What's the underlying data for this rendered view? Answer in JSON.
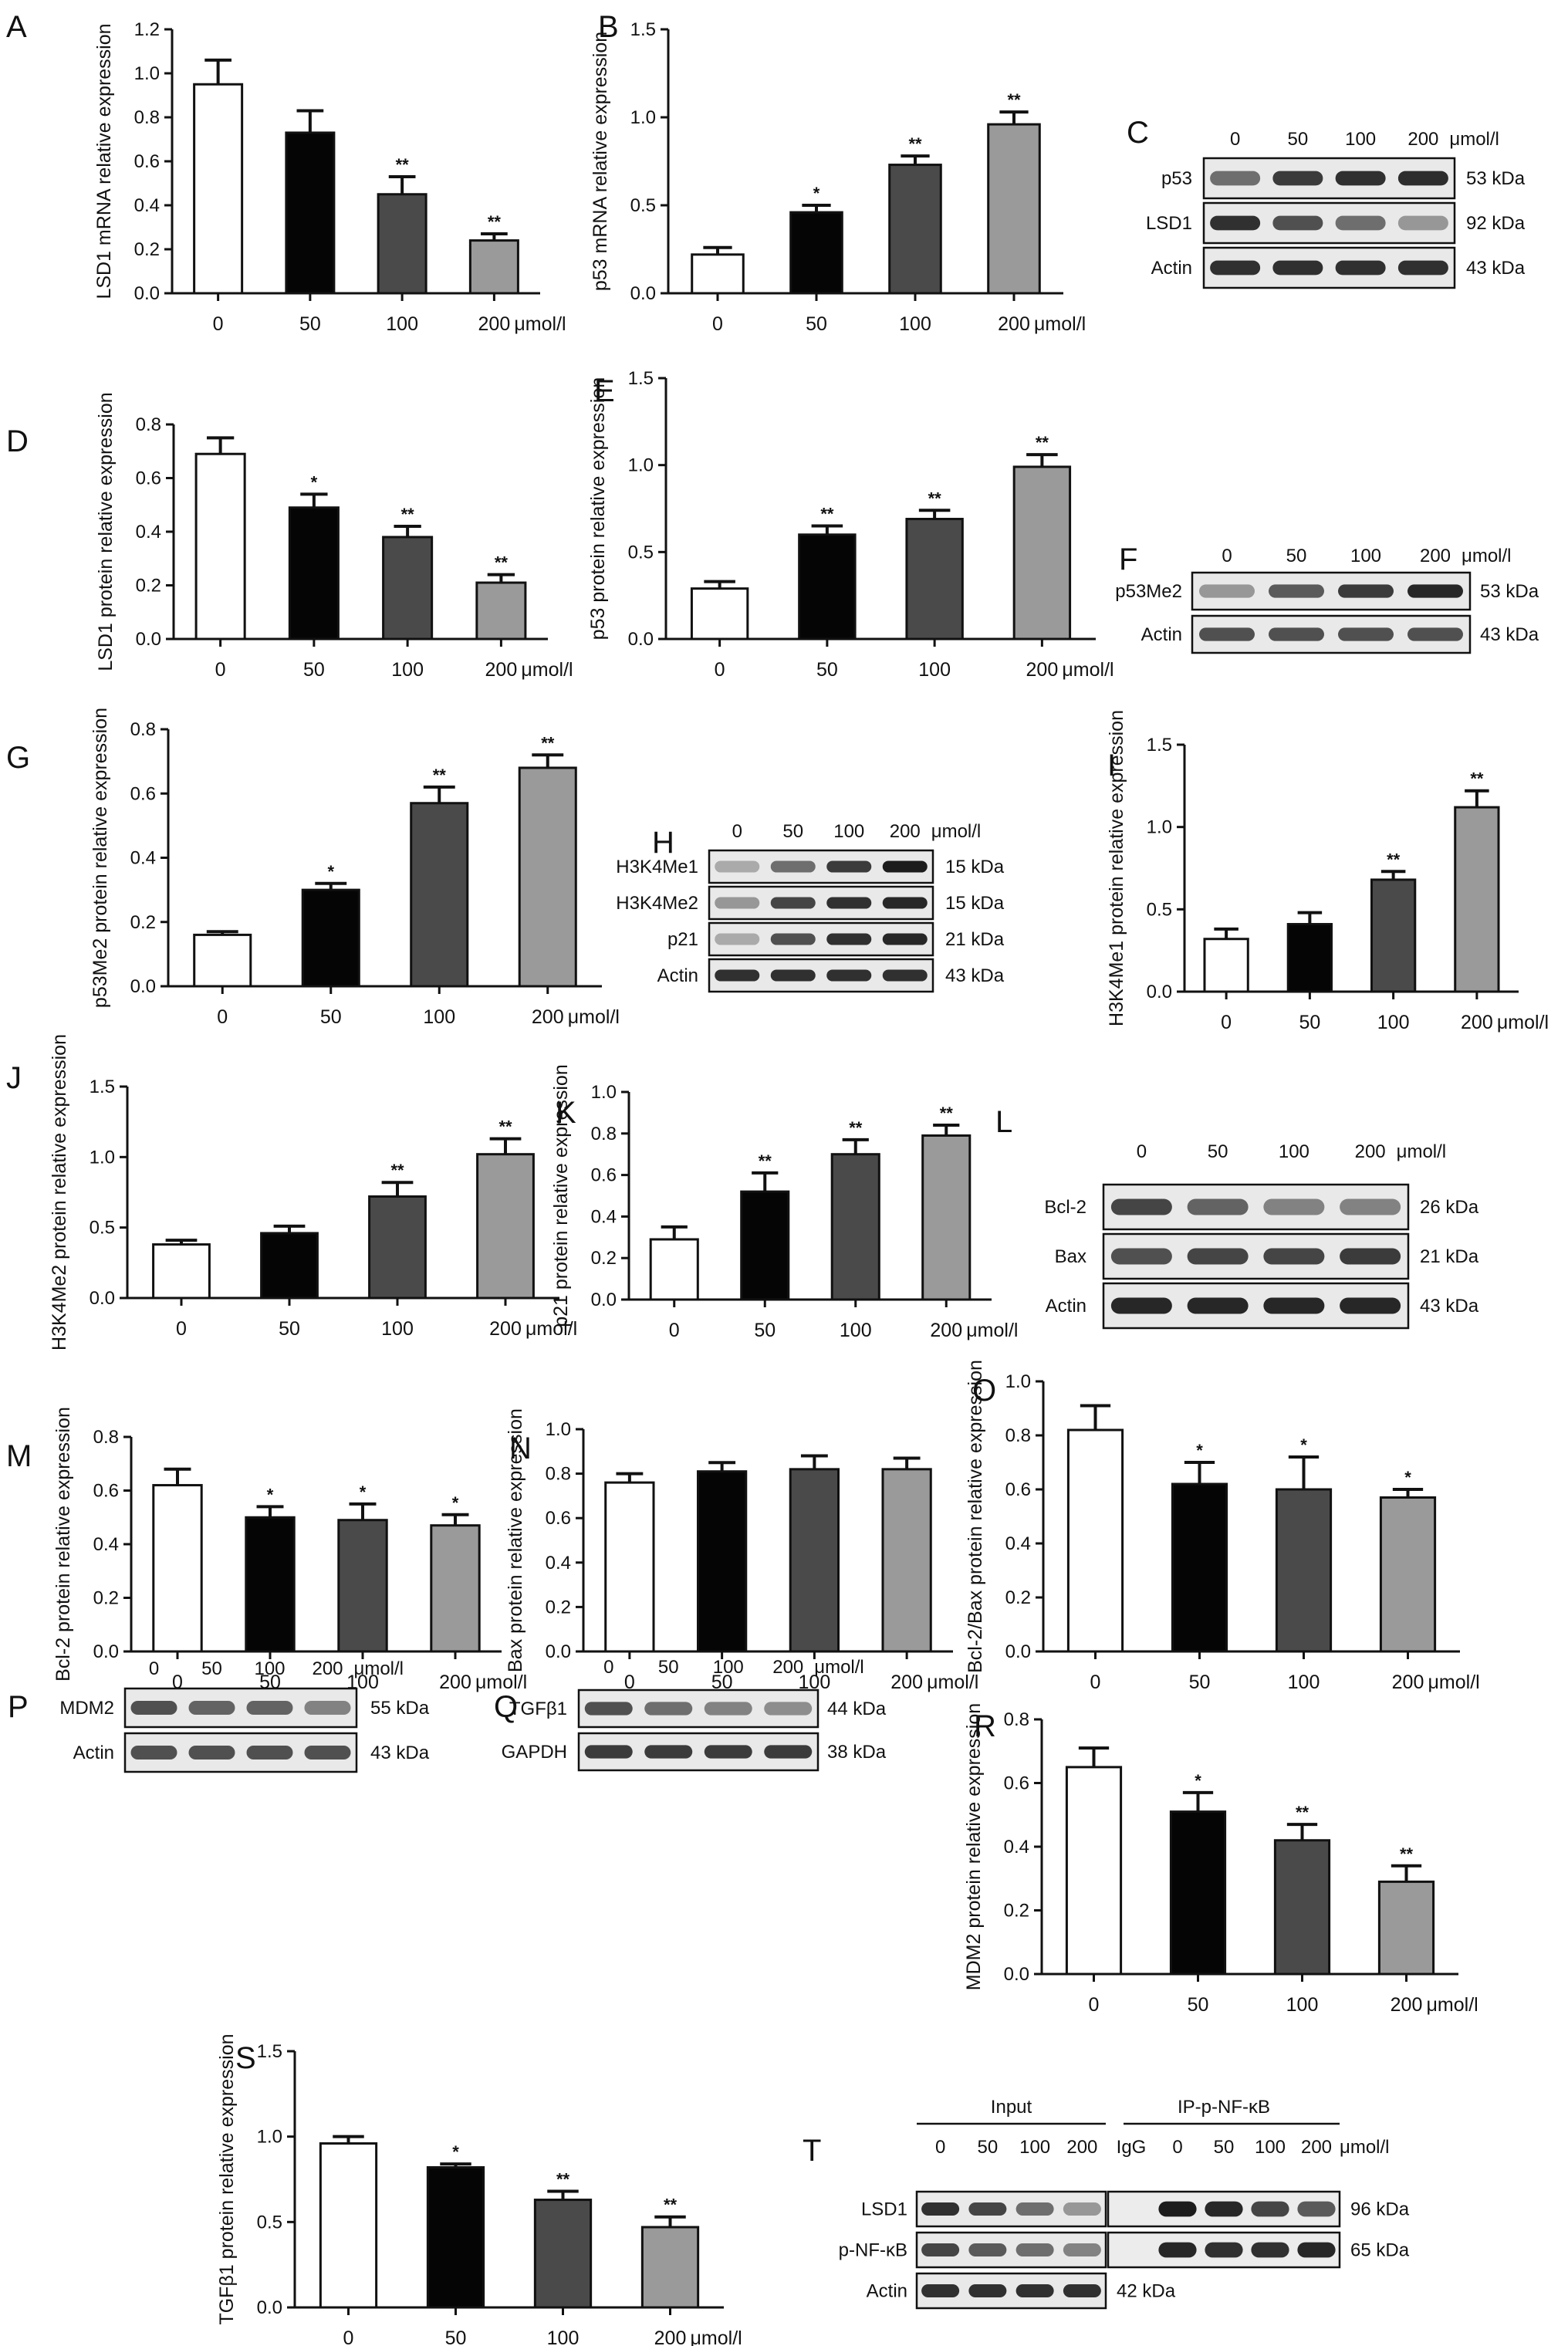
{
  "colors": {
    "bar_fills": [
      "#ffffff",
      "#050505",
      "#4a4a4a",
      "#9a9a9a"
    ],
    "bar_stroke": "#111111",
    "band": "#1c1c1c"
  },
  "chart_data": [
    {
      "id": "A",
      "type": "bar",
      "title": "",
      "xlabel": "",
      "ylabel": "LSD1 mRNA relative expression",
      "categories": [
        "0",
        "50",
        "100",
        "200"
      ],
      "unit_label": "μmol/l",
      "values": [
        0.95,
        0.73,
        0.45,
        0.24
      ],
      "errors": [
        0.11,
        0.1,
        0.08,
        0.03
      ],
      "significance": [
        "",
        "",
        "**",
        "**"
      ],
      "ylim": [
        0,
        1.2
      ],
      "yticks": [
        "0.0",
        "0.2",
        "0.4",
        "0.6",
        "0.8",
        "1.0",
        "1.2"
      ],
      "grid": false,
      "legend": "none"
    },
    {
      "id": "B",
      "type": "bar",
      "title": "",
      "xlabel": "",
      "ylabel": "p53 mRNA relative expression",
      "categories": [
        "0",
        "50",
        "100",
        "200"
      ],
      "unit_label": "μmol/l",
      "values": [
        0.22,
        0.46,
        0.73,
        0.96
      ],
      "errors": [
        0.04,
        0.04,
        0.05,
        0.07
      ],
      "significance": [
        "",
        "*",
        "**",
        "**"
      ],
      "ylim": [
        0,
        1.5
      ],
      "yticks": [
        "0.0",
        "0.5",
        "1.0",
        "1.5"
      ],
      "grid": false,
      "legend": "none"
    },
    {
      "id": "D",
      "type": "bar",
      "title": "",
      "xlabel": "",
      "ylabel": "LSD1 protein relative expression",
      "categories": [
        "0",
        "50",
        "100",
        "200"
      ],
      "unit_label": "μmol/l",
      "values": [
        0.69,
        0.49,
        0.38,
        0.21
      ],
      "errors": [
        0.06,
        0.05,
        0.04,
        0.03
      ],
      "significance": [
        "",
        "*",
        "**",
        "**"
      ],
      "ylim": [
        0,
        0.8
      ],
      "yticks": [
        "0.0",
        "0.2",
        "0.4",
        "0.6",
        "0.8"
      ],
      "grid": false,
      "legend": "none"
    },
    {
      "id": "E",
      "type": "bar",
      "title": "",
      "xlabel": "",
      "ylabel": "p53 protein relative expression",
      "categories": [
        "0",
        "50",
        "100",
        "200"
      ],
      "unit_label": "μmol/l",
      "values": [
        0.29,
        0.6,
        0.69,
        0.99
      ],
      "errors": [
        0.04,
        0.05,
        0.05,
        0.07
      ],
      "significance": [
        "",
        "**",
        "**",
        "**"
      ],
      "ylim": [
        0,
        1.5
      ],
      "yticks": [
        "0.0",
        "0.5",
        "1.0",
        "1.5"
      ],
      "grid": false,
      "legend": "none"
    },
    {
      "id": "G",
      "type": "bar",
      "title": "",
      "xlabel": "",
      "ylabel": "p53Me2 protein relative expression",
      "categories": [
        "0",
        "50",
        "100",
        "200"
      ],
      "unit_label": "μmol/l",
      "values": [
        0.16,
        0.3,
        0.57,
        0.68
      ],
      "errors": [
        0.01,
        0.02,
        0.05,
        0.04
      ],
      "significance": [
        "",
        "*",
        "**",
        "**"
      ],
      "ylim": [
        0,
        0.8
      ],
      "yticks": [
        "0.0",
        "0.2",
        "0.4",
        "0.6",
        "0.8"
      ],
      "grid": false,
      "legend": "none"
    },
    {
      "id": "I",
      "type": "bar",
      "title": "",
      "xlabel": "",
      "ylabel": "H3K4Me1 protein relative expression",
      "categories": [
        "0",
        "50",
        "100",
        "200"
      ],
      "unit_label": "μmol/l",
      "values": [
        0.32,
        0.41,
        0.68,
        1.12
      ],
      "errors": [
        0.06,
        0.07,
        0.05,
        0.1
      ],
      "significance": [
        "",
        "",
        "**",
        "**"
      ],
      "ylim": [
        0,
        1.5
      ],
      "yticks": [
        "0.0",
        "0.5",
        "1.0",
        "1.5"
      ],
      "grid": false,
      "legend": "none"
    },
    {
      "id": "J",
      "type": "bar",
      "title": "",
      "xlabel": "",
      "ylabel": "H3K4Me2 protein relative expression",
      "categories": [
        "0",
        "50",
        "100",
        "200"
      ],
      "unit_label": "μmol/l",
      "values": [
        0.38,
        0.46,
        0.72,
        1.02
      ],
      "errors": [
        0.03,
        0.05,
        0.1,
        0.11
      ],
      "significance": [
        "",
        "",
        "**",
        "**"
      ],
      "ylim": [
        0,
        1.5
      ],
      "yticks": [
        "0.0",
        "0.5",
        "1.0",
        "1.5"
      ],
      "grid": false,
      "legend": "none"
    },
    {
      "id": "K",
      "type": "bar",
      "title": "",
      "xlabel": "",
      "ylabel": "p21 protein relative expression",
      "categories": [
        "0",
        "50",
        "100",
        "200"
      ],
      "unit_label": "μmol/l",
      "values": [
        0.29,
        0.52,
        0.7,
        0.79
      ],
      "errors": [
        0.06,
        0.09,
        0.07,
        0.05
      ],
      "significance": [
        "",
        "**",
        "**",
        "**"
      ],
      "ylim": [
        0,
        1.0
      ],
      "yticks": [
        "0.0",
        "0.2",
        "0.4",
        "0.6",
        "0.8",
        "1.0"
      ],
      "grid": false,
      "legend": "none"
    },
    {
      "id": "M",
      "type": "bar",
      "title": "",
      "xlabel": "",
      "ylabel": "Bcl-2 protein relative expression",
      "categories": [
        "0",
        "50",
        "100",
        "200"
      ],
      "unit_label": "μmol/l",
      "values": [
        0.62,
        0.5,
        0.49,
        0.47
      ],
      "errors": [
        0.06,
        0.04,
        0.06,
        0.04
      ],
      "significance": [
        "",
        "*",
        "*",
        "*"
      ],
      "ylim": [
        0,
        0.8
      ],
      "yticks": [
        "0.0",
        "0.2",
        "0.4",
        "0.6",
        "0.8"
      ],
      "grid": false,
      "legend": "none"
    },
    {
      "id": "N",
      "type": "bar",
      "title": "",
      "xlabel": "",
      "ylabel": "Bax protein relative expression",
      "categories": [
        "0",
        "50",
        "100",
        "200"
      ],
      "unit_label": "μmol/l",
      "values": [
        0.76,
        0.81,
        0.82,
        0.82
      ],
      "errors": [
        0.04,
        0.04,
        0.06,
        0.05
      ],
      "significance": [
        "",
        "",
        "",
        ""
      ],
      "ylim": [
        0,
        1.0
      ],
      "yticks": [
        "0.0",
        "0.2",
        "0.4",
        "0.6",
        "0.8",
        "1.0"
      ],
      "grid": false,
      "legend": "none"
    },
    {
      "id": "O",
      "type": "bar",
      "title": "",
      "xlabel": "",
      "ylabel": "Bcl-2/Bax protein relative expression",
      "categories": [
        "0",
        "50",
        "100",
        "200"
      ],
      "unit_label": "μmol/l",
      "values": [
        0.82,
        0.62,
        0.6,
        0.57
      ],
      "errors": [
        0.09,
        0.08,
        0.12,
        0.03
      ],
      "significance": [
        "",
        "*",
        "*",
        "*"
      ],
      "ylim": [
        0,
        1.0
      ],
      "yticks": [
        "0.0",
        "0.2",
        "0.4",
        "0.6",
        "0.8",
        "1.0"
      ],
      "grid": false,
      "legend": "none"
    },
    {
      "id": "R",
      "type": "bar",
      "title": "",
      "xlabel": "",
      "ylabel": "MDM2 protein relative expression",
      "categories": [
        "0",
        "50",
        "100",
        "200"
      ],
      "unit_label": "μmol/l",
      "values": [
        0.65,
        0.51,
        0.42,
        0.29
      ],
      "errors": [
        0.06,
        0.06,
        0.05,
        0.05
      ],
      "significance": [
        "",
        "*",
        "**",
        "**"
      ],
      "ylim": [
        0,
        0.8
      ],
      "yticks": [
        "0.0",
        "0.2",
        "0.4",
        "0.6",
        "0.8"
      ],
      "grid": false,
      "legend": "none"
    },
    {
      "id": "S",
      "type": "bar",
      "title": "",
      "xlabel": "",
      "ylabel": "TGFβ1 protein relative expression",
      "categories": [
        "0",
        "50",
        "100",
        "200"
      ],
      "unit_label": "μmol/l",
      "values": [
        0.96,
        0.82,
        0.63,
        0.47
      ],
      "errors": [
        0.04,
        0.02,
        0.05,
        0.06
      ],
      "significance": [
        "",
        "*",
        "**",
        "**"
      ],
      "ylim": [
        0,
        1.5
      ],
      "yticks": [
        "0.0",
        "0.5",
        "1.0",
        "1.5"
      ],
      "grid": false,
      "legend": "none"
    }
  ],
  "blots": [
    {
      "id": "C",
      "lanes": [
        "0",
        "50",
        "100",
        "200"
      ],
      "unit_label": "μmol/l",
      "rows": [
        {
          "label": "p53",
          "kda": "53 kDa",
          "intensity": [
            0.6,
            0.85,
            0.9,
            0.92
          ]
        },
        {
          "label": "LSD1",
          "kda": "92 kDa",
          "intensity": [
            0.9,
            0.75,
            0.6,
            0.4
          ]
        },
        {
          "label": "Actin",
          "kda": "43 kDa",
          "intensity": [
            0.9,
            0.9,
            0.9,
            0.9
          ]
        }
      ]
    },
    {
      "id": "F",
      "lanes": [
        "0",
        "50",
        "100",
        "200"
      ],
      "unit_label": "μmol/l",
      "rows": [
        {
          "label": "p53Me2",
          "kda": "53 kDa",
          "intensity": [
            0.4,
            0.7,
            0.85,
            0.95
          ]
        },
        {
          "label": "Actin",
          "kda": "43 kDa",
          "intensity": [
            0.75,
            0.75,
            0.75,
            0.75
          ]
        }
      ]
    },
    {
      "id": "H",
      "lanes": [
        "0",
        "50",
        "100",
        "200"
      ],
      "unit_label": "μmol/l",
      "rows": [
        {
          "label": "H3K4Me1",
          "kda": "15 kDa",
          "intensity": [
            0.3,
            0.6,
            0.85,
            1.0
          ]
        },
        {
          "label": "H3K4Me2",
          "kda": "15 kDa",
          "intensity": [
            0.4,
            0.8,
            0.9,
            0.95
          ]
        },
        {
          "label": "p21",
          "kda": "21 kDa",
          "intensity": [
            0.3,
            0.75,
            0.9,
            0.95
          ]
        },
        {
          "label": "Actin",
          "kda": "43 kDa",
          "intensity": [
            0.9,
            0.9,
            0.9,
            0.9
          ]
        }
      ]
    },
    {
      "id": "L",
      "lanes": [
        "0",
        "50",
        "100",
        "200"
      ],
      "unit_label": "μmol/l",
      "rows": [
        {
          "label": "Bcl-2",
          "kda": "26 kDa",
          "intensity": [
            0.8,
            0.65,
            0.5,
            0.5
          ]
        },
        {
          "label": "Bax",
          "kda": "21 kDa",
          "intensity": [
            0.75,
            0.8,
            0.8,
            0.85
          ]
        },
        {
          "label": "Actin",
          "kda": "43 kDa",
          "intensity": [
            0.95,
            0.95,
            0.95,
            0.95
          ]
        }
      ]
    },
    {
      "id": "P",
      "lanes": [
        "0",
        "50",
        "100",
        "200"
      ],
      "unit_label": "μmol/l",
      "rows": [
        {
          "label": "MDM2",
          "kda": "55 kDa",
          "intensity": [
            0.75,
            0.65,
            0.65,
            0.5
          ]
        },
        {
          "label": "Actin",
          "kda": "43 kDa",
          "intensity": [
            0.75,
            0.75,
            0.75,
            0.75
          ]
        }
      ]
    },
    {
      "id": "Q",
      "lanes": [
        "0",
        "50",
        "100",
        "200"
      ],
      "unit_label": "μmol/l",
      "rows": [
        {
          "label": "TGFβ1",
          "kda": "44 kDa",
          "intensity": [
            0.75,
            0.6,
            0.5,
            0.45
          ]
        },
        {
          "label": "GAPDH",
          "kda": "38 kDa",
          "intensity": [
            0.85,
            0.85,
            0.85,
            0.85
          ]
        }
      ]
    },
    {
      "id": "T",
      "group_labels": [
        "Input",
        "IP-p-NF-κB"
      ],
      "input_lanes": [
        "0",
        "50",
        "100",
        "200"
      ],
      "ip_lanes": [
        "IgG",
        "0",
        "50",
        "100",
        "200"
      ],
      "unit_label": "μmol/l",
      "rows": [
        {
          "label": "LSD1",
          "kda": "96 kDa",
          "input_intensity": [
            0.9,
            0.8,
            0.6,
            0.4
          ],
          "ip_intensity": [
            0.0,
            1.0,
            0.95,
            0.8,
            0.7
          ]
        },
        {
          "label": "p-NF-κB",
          "kda": "65 kDa",
          "input_intensity": [
            0.8,
            0.7,
            0.6,
            0.5
          ],
          "ip_intensity": [
            0.0,
            0.95,
            0.9,
            0.9,
            0.95
          ]
        },
        {
          "label": "Actin",
          "kda": "42 kDa",
          "input_intensity": [
            0.9,
            0.9,
            0.9,
            0.9
          ]
        }
      ]
    }
  ]
}
